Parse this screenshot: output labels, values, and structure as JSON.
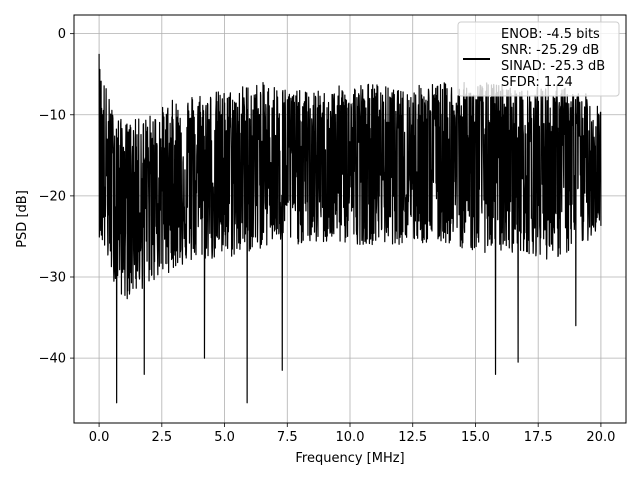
{
  "chart_data": {
    "type": "line",
    "title": "",
    "xlabel": "Frequency [MHz]",
    "ylabel": "PSD [dB]",
    "xlim": [
      -1.0,
      21.0
    ],
    "ylim": [
      -48.0,
      2.3
    ],
    "xticks": [
      0.0,
      2.5,
      5.0,
      7.5,
      10.0,
      12.5,
      15.0,
      17.5,
      20.0
    ],
    "xtick_labels": [
      "0.0",
      "2.5",
      "5.0",
      "7.5",
      "10.0",
      "12.5",
      "15.0",
      "17.5",
      "20.0"
    ],
    "yticks": [
      0,
      -10,
      -20,
      -30,
      -40
    ],
    "ytick_labels": [
      "0",
      "−10",
      "−20",
      "−30",
      "−40"
    ],
    "grid": true,
    "legend": {
      "placement": "top-right",
      "lines": [
        "ENOB: -4.5 bits",
        "SNR: -25.29 dB",
        "SINAD: -25.3 dB",
        "SFDR: 1.24"
      ]
    },
    "series": [
      {
        "color": "#000000",
        "x_range": [
          0.0,
          20.0
        ],
        "points": 2000,
        "envelope_approx": {
          "x": [
            0,
            0.5,
            1,
            2,
            3,
            4,
            5,
            6,
            7,
            8,
            9,
            10,
            11,
            12,
            13,
            14,
            15,
            16,
            17,
            18,
            19,
            20
          ],
          "upper": [
            -3,
            -9,
            -11,
            -10,
            -8,
            -7,
            -7,
            -6,
            -6,
            -7,
            -7,
            -6,
            -6,
            -7,
            -6,
            -6,
            -6,
            -6,
            -7,
            -6,
            -7,
            -8
          ],
          "median": [
            -16,
            -18,
            -19,
            -19,
            -18,
            -17,
            -17,
            -16,
            -16,
            -16,
            -16,
            -15,
            -15,
            -15,
            -15,
            -15,
            -15,
            -15,
            -15,
            -15,
            -15,
            -16
          ],
          "lower": [
            -25,
            -30,
            -33,
            -31,
            -29,
            -28,
            -28,
            -27,
            -26,
            -26,
            -26,
            -26,
            -26,
            -26,
            -26,
            -26,
            -27,
            -27,
            -27,
            -28,
            -27,
            -24
          ]
        },
        "notable_points": [
          {
            "x": 0.0,
            "y": -2.5
          },
          {
            "x": 0.7,
            "y": -45.5
          },
          {
            "x": 1.8,
            "y": -42.0
          },
          {
            "x": 4.2,
            "y": -40.0
          },
          {
            "x": 5.9,
            "y": -45.5
          },
          {
            "x": 7.3,
            "y": -41.5
          },
          {
            "x": 15.8,
            "y": -42.0
          },
          {
            "x": 16.7,
            "y": -40.5
          },
          {
            "x": 19.0,
            "y": -36.0
          }
        ]
      }
    ]
  }
}
